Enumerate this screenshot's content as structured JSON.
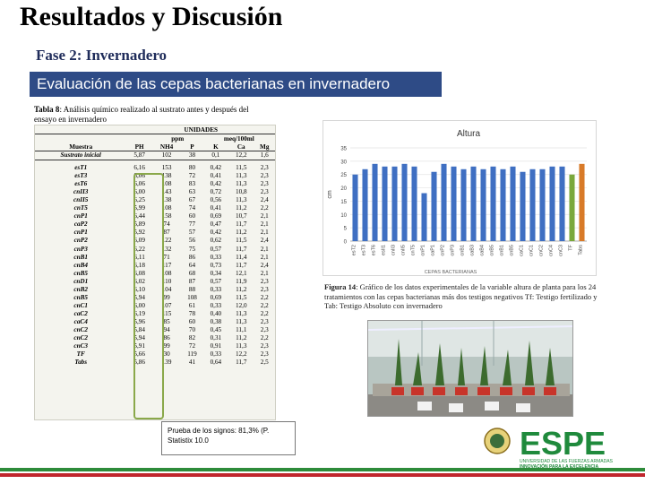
{
  "slide": {
    "title": "Resultados y Discusión",
    "subtitle": "Fase 2: Invernadero",
    "banner": "Evaluación de las cepas bacterianas en invernadero"
  },
  "table": {
    "caption_label": "Tabla 8",
    "caption_text": ": Análisis químico realizado al sustrato antes y después del ensayo en invernadero",
    "units_label": "UNIDADES",
    "unit_ppm": "ppm",
    "unit_meq": "meq/100ml",
    "col_sample": "Muestra",
    "columns": [
      "PH",
      "NH4",
      "P",
      "K",
      "Ca",
      "Mg"
    ],
    "initial": {
      "label": "Sustrato inicial",
      "values": [
        "5,87",
        "102",
        "38",
        "0,1",
        "12,2",
        "1,6"
      ]
    },
    "rows": [
      {
        "label": "esT1",
        "values": [
          "6,16",
          "153",
          "80",
          "0,42",
          "11,5",
          "2,3"
        ]
      },
      {
        "label": "esT3",
        "values": [
          "6,06",
          "138",
          "72",
          "0,41",
          "11,3",
          "2,3"
        ]
      },
      {
        "label": "esT6",
        "values": [
          "6,06",
          "108",
          "83",
          "0,42",
          "11,3",
          "2,3"
        ]
      },
      {
        "label": "cnII3",
        "values": [
          "6,00",
          "143",
          "63",
          "0,72",
          "10,8",
          "2,3"
        ]
      },
      {
        "label": "cnII5",
        "values": [
          "6,25",
          "138",
          "67",
          "0,56",
          "11,3",
          "2,4"
        ]
      },
      {
        "label": "cnT5",
        "values": [
          "5,99",
          "108",
          "74",
          "0,41",
          "11,2",
          "2,2"
        ]
      },
      {
        "label": "cnP1",
        "values": [
          "6,44",
          "158",
          "60",
          "0,69",
          "10,7",
          "2,1"
        ]
      },
      {
        "label": "caP2",
        "values": [
          "5,89",
          "74",
          "77",
          "0,47",
          "11,7",
          "2,1"
        ]
      },
      {
        "label": "cnP1",
        "values": [
          "5,92",
          "87",
          "57",
          "0,42",
          "11,2",
          "2,1"
        ]
      },
      {
        "label": "cnP2",
        "values": [
          "6,09",
          "122",
          "56",
          "0,62",
          "11,5",
          "2,4"
        ]
      },
      {
        "label": "cnP3",
        "values": [
          "6,22",
          "132",
          "75",
          "0,57",
          "11,7",
          "2,1"
        ]
      },
      {
        "label": "cnB1",
        "values": [
          "6,11",
          "71",
          "86",
          "0,33",
          "11,4",
          "2,1"
        ]
      },
      {
        "label": "cnB4",
        "values": [
          "6,18",
          "117",
          "64",
          "0,73",
          "11,7",
          "2,4"
        ]
      },
      {
        "label": "cnB5",
        "values": [
          "6,08",
          "108",
          "68",
          "0,34",
          "12,1",
          "2,1"
        ]
      },
      {
        "label": "cnD1",
        "values": [
          "6,02",
          "110",
          "87",
          "0,57",
          "11,9",
          "2,3"
        ]
      },
      {
        "label": "cnB2",
        "values": [
          "6,10",
          "104",
          "88",
          "0,33",
          "11,2",
          "2,3"
        ]
      },
      {
        "label": "cnB5",
        "values": [
          "5,94",
          "99",
          "108",
          "0,69",
          "11,5",
          "2,2"
        ]
      },
      {
        "label": "cnC1",
        "values": [
          "6,00",
          "107",
          "61",
          "0,33",
          "12,0",
          "2,2"
        ]
      },
      {
        "label": "caC2",
        "values": [
          "6,19",
          "115",
          "78",
          "0,40",
          "11,3",
          "2,2"
        ]
      },
      {
        "label": "caC4",
        "values": [
          "5,96",
          "85",
          "60",
          "0,38",
          "11,3",
          "2,3"
        ]
      },
      {
        "label": "cnC2",
        "values": [
          "5,84",
          "94",
          "70",
          "0,45",
          "11,1",
          "2,3"
        ]
      },
      {
        "label": "cnC2",
        "values": [
          "5,94",
          "86",
          "82",
          "0,31",
          "11,2",
          "2,2"
        ]
      },
      {
        "label": "cnC3",
        "values": [
          "5,91",
          "99",
          "72",
          "0,91",
          "11,3",
          "2,3"
        ]
      },
      {
        "label": "TF",
        "values": [
          "5,66",
          "30",
          "119",
          "0,33",
          "12,2",
          "2,3"
        ]
      },
      {
        "label": "Tabs",
        "values": [
          "5,86",
          "139",
          "41",
          "0,64",
          "11,7",
          "2,5"
        ]
      }
    ],
    "note": "Prueba de los signos: 81,3% (P. Statistix 10.0"
  },
  "chart_data": {
    "type": "bar",
    "title": "Altura",
    "ylabel": "cm",
    "xlabel": "CEPAS BACTERIANAS",
    "ylim": [
      0,
      35
    ],
    "yticks": [
      0,
      5,
      10,
      15,
      20,
      25,
      30,
      35
    ],
    "grid": true,
    "categories": [
      "esT2",
      "esT3",
      "esT6",
      "esII1",
      "cnII3",
      "cnII5",
      "cnT5",
      "cnP1",
      "caP1",
      "cnP2",
      "cnP3",
      "cnB1",
      "caB3",
      "caB4",
      "cnB5",
      "cnB1",
      "cnB5",
      "caC1",
      "cnC1",
      "cnC2",
      "cnC4",
      "cnC3",
      "TF",
      "Tabs"
    ],
    "values": [
      25,
      27,
      29,
      28,
      28,
      29,
      28,
      18,
      26,
      29,
      28,
      27,
      28,
      27,
      28,
      27,
      28,
      26,
      27,
      27,
      28,
      28,
      25,
      29
    ],
    "bar_colors": {
      "default": "#3f6fc2",
      "TF": "#7aa83c",
      "Tabs": "#d87a28"
    }
  },
  "figure": {
    "caption_label": "Figura 14",
    "caption_text": ": Gráfico de los datos experimentales de la variable altura de planta para los 24 tratamientos con las cepas bacterianas más dos testigos negativos Tf: Testigo fertilizado y Tab: Testigo Absoluto con invernadero"
  },
  "logo": {
    "name": "ESPE",
    "line1": "UNIVERSIDAD DE LAS FUERZAS ARMADAS",
    "line2": "INNOVACIÓN PARA LA EXCELENCIA"
  },
  "colors": {
    "banner": "#2e4b86",
    "logo_green": "#1f8a3c",
    "bottom_green": "#2e8b3a",
    "bottom_red": "#c0262d"
  }
}
